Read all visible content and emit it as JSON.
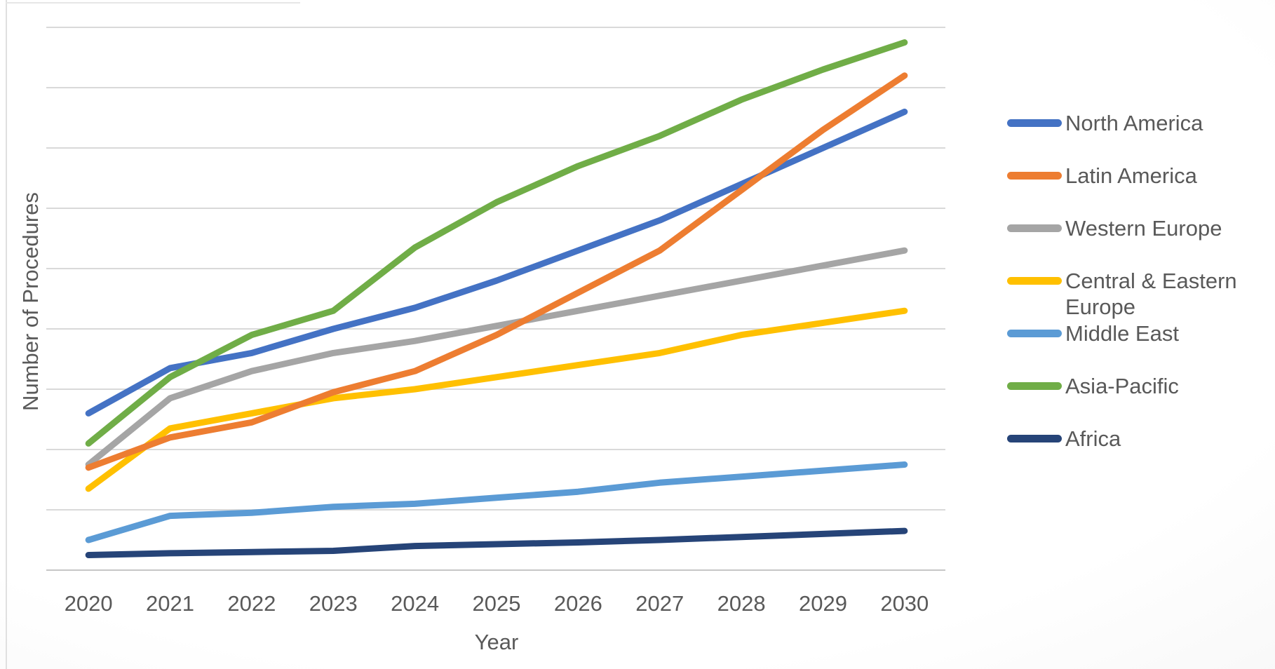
{
  "chart_data": {
    "type": "line",
    "title": "",
    "xlabel": "Year",
    "ylabel": "Number of Procedures",
    "categories": [
      "2020",
      "2021",
      "2022",
      "2023",
      "2024",
      "2025",
      "2026",
      "2027",
      "2028",
      "2029",
      "2030"
    ],
    "series": [
      {
        "name": "North America",
        "color": "#4472C4",
        "values": [
          2.6,
          3.35,
          3.6,
          4.0,
          4.35,
          4.8,
          5.3,
          5.8,
          6.4,
          7.0,
          7.6
        ]
      },
      {
        "name": "Latin America",
        "color": "#ED7D31",
        "values": [
          1.7,
          2.2,
          2.45,
          2.95,
          3.3,
          3.9,
          4.6,
          5.3,
          6.3,
          7.3,
          8.2
        ]
      },
      {
        "name": "Western Europe",
        "color": "#A5A5A5",
        "values": [
          1.75,
          2.85,
          3.3,
          3.6,
          3.8,
          4.05,
          4.3,
          4.55,
          4.8,
          5.05,
          5.3
        ]
      },
      {
        "name": "Central & Eastern Europe",
        "color": "#FFC000",
        "values": [
          1.35,
          2.35,
          2.6,
          2.85,
          3.0,
          3.2,
          3.4,
          3.6,
          3.9,
          4.1,
          4.3
        ]
      },
      {
        "name": "Middle East",
        "color": "#5B9BD5",
        "values": [
          0.5,
          0.9,
          0.95,
          1.05,
          1.1,
          1.2,
          1.3,
          1.45,
          1.55,
          1.65,
          1.75
        ]
      },
      {
        "name": "Asia-Pacific",
        "color": "#70AD47",
        "values": [
          2.1,
          3.2,
          3.9,
          4.3,
          5.35,
          6.1,
          6.7,
          7.2,
          7.8,
          8.3,
          8.75
        ]
      },
      {
        "name": "Africa",
        "color": "#264478",
        "values": [
          0.25,
          0.28,
          0.3,
          0.32,
          0.4,
          0.43,
          0.46,
          0.5,
          0.55,
          0.6,
          0.65
        ]
      }
    ],
    "ylim": [
      0,
      9
    ],
    "y_gridline_step": 1,
    "y_tick_labels": "none",
    "gridlines": "horizontal",
    "legend_position": "right",
    "axis_color": "#C6C6C6",
    "gridline_color": "#D9D9D9",
    "text_color": "#595959"
  }
}
